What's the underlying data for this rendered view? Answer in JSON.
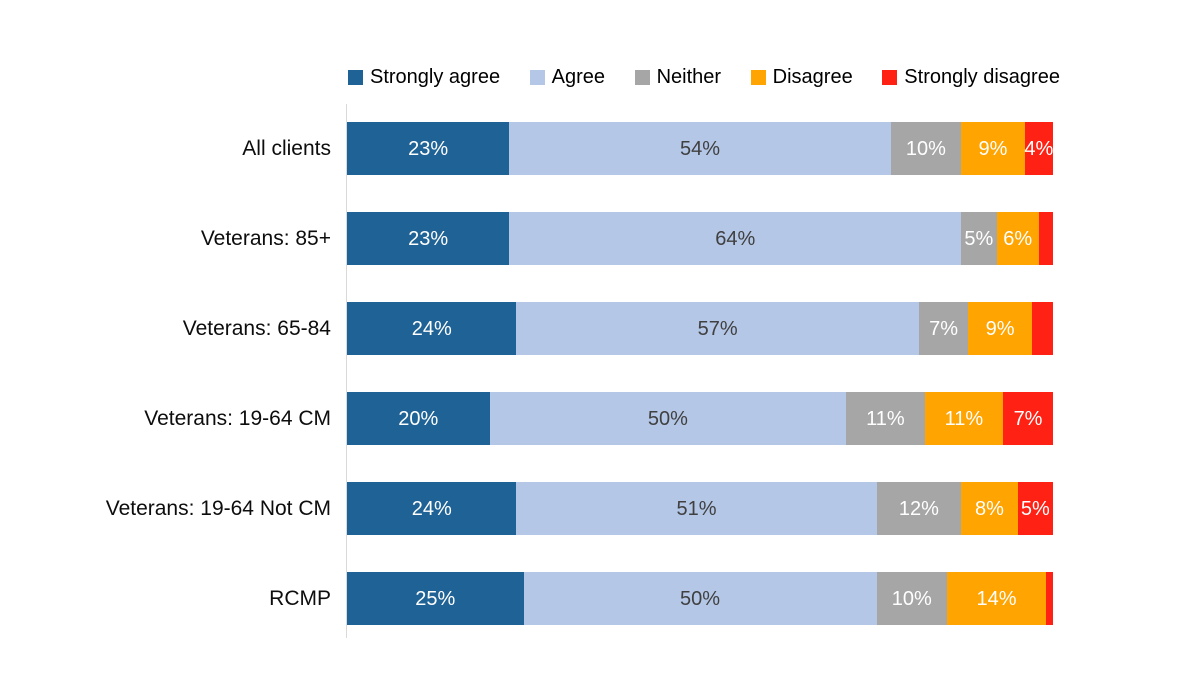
{
  "chart_data": {
    "type": "bar",
    "variant": "100pct-stacked-horizontal",
    "title": "",
    "legend_position": "top",
    "xlim": [
      0,
      100
    ],
    "grid": false,
    "axis_line_color": "#d9d9d9",
    "series": [
      {
        "name": "Strongly agree",
        "color": "#1F6296",
        "label_color": "#FFFFFF"
      },
      {
        "name": "Agree",
        "color": "#B4C7E7",
        "label_color": "#404040"
      },
      {
        "name": "Neither",
        "color": "#A6A6A6",
        "label_color": "#FFFFFF"
      },
      {
        "name": "Disagree",
        "color": "#FFA400",
        "label_color": "#FFFFFF"
      },
      {
        "name": "Strongly disagree",
        "color": "#FF2114",
        "label_color": "#FFFFFF"
      }
    ],
    "categories": [
      "All clients",
      "Veterans: 85+",
      "Veterans: 65-84",
      "Veterans: 19-64 CM",
      "Veterans: 19-64 Not CM",
      "RCMP"
    ],
    "rows": [
      {
        "category": "All clients",
        "values": [
          23,
          54,
          10,
          9,
          4
        ],
        "labels": [
          "23%",
          "54%",
          "10%",
          "9%",
          "4%"
        ]
      },
      {
        "category": "Veterans: 85+",
        "values": [
          23,
          64,
          5,
          6,
          2
        ],
        "labels": [
          "23%",
          "64%",
          "5%",
          "6%",
          ""
        ]
      },
      {
        "category": "Veterans: 65-84",
        "values": [
          24,
          57,
          7,
          9,
          3
        ],
        "labels": [
          "24%",
          "57%",
          "7%",
          "9%",
          ""
        ]
      },
      {
        "category": "Veterans: 19-64 CM",
        "values": [
          20,
          50,
          11,
          11,
          7
        ],
        "labels": [
          "20%",
          "50%",
          "11%",
          "11%",
          "7%"
        ]
      },
      {
        "category": "Veterans: 19-64 Not CM",
        "values": [
          24,
          51,
          12,
          8,
          5
        ],
        "labels": [
          "24%",
          "51%",
          "12%",
          "8%",
          "5%"
        ]
      },
      {
        "category": "RCMP",
        "values": [
          25,
          50,
          10,
          14,
          1
        ],
        "labels": [
          "25%",
          "50%",
          "10%",
          "14%",
          ""
        ]
      }
    ]
  }
}
